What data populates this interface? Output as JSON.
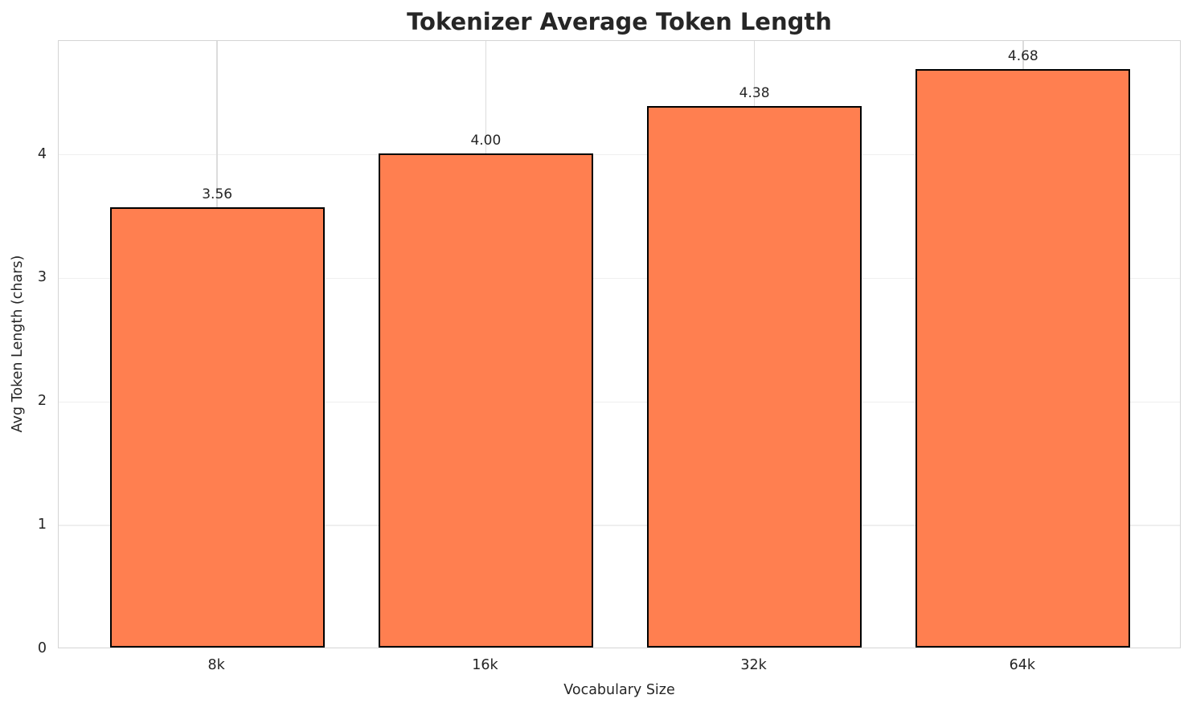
{
  "chart_data": {
    "type": "bar",
    "title": "Tokenizer Average Token Length",
    "xlabel": "Vocabulary Size",
    "ylabel": "Avg Token Length (chars)",
    "categories": [
      "8k",
      "16k",
      "32k",
      "64k"
    ],
    "values": [
      3.56,
      4.0,
      4.38,
      4.68
    ],
    "value_labels": [
      "3.56",
      "4.00",
      "4.38",
      "4.68"
    ],
    "yticks": [
      0,
      1,
      2,
      3,
      4
    ],
    "ylim": [
      0,
      4.92
    ],
    "grid": true,
    "legend": "none",
    "bar_color": "#ff7f50",
    "bar_edge_color": "#000000",
    "text_color": "#262626",
    "hgrid_color": "#efefef",
    "vgrid_color": "#dcdcdc",
    "spine_color": "#d4d4d4",
    "background_color": "#ffffff"
  }
}
